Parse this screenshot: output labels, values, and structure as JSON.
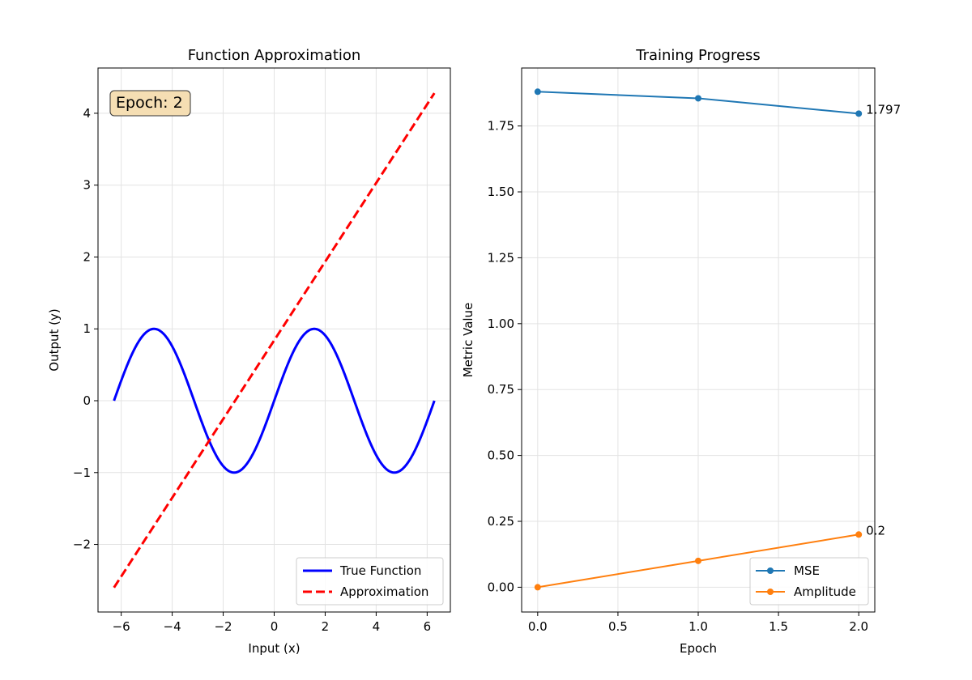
{
  "chart_data": [
    {
      "type": "line",
      "title": "Function Approximation",
      "xlabel": "Input (x)",
      "ylabel": "Output (y)",
      "xlim": [
        -6.91,
        6.91
      ],
      "ylim": [
        -2.94,
        4.63
      ],
      "xticks": [
        -6,
        -4,
        -2,
        0,
        2,
        4,
        6
      ],
      "xtick_labels": [
        "−6",
        "−4",
        "−2",
        "0",
        "2",
        "4",
        "6"
      ],
      "yticks": [
        -2,
        -1,
        0,
        1,
        2,
        3,
        4
      ],
      "ytick_labels": [
        "−2",
        "−1",
        "0",
        "1",
        "2",
        "3",
        "4"
      ],
      "grid": true,
      "legend_position": "lower-right",
      "annotation": "Epoch: 2",
      "series": [
        {
          "name": "True Function",
          "color": "#0000ff",
          "style": "solid",
          "function": "sin(x)",
          "x_range": [
            -6.283,
            6.283
          ]
        },
        {
          "name": "Approximation",
          "color": "#ff0000",
          "style": "dashed",
          "x": [
            -6.283,
            6.283
          ],
          "y": [
            -2.6,
            4.28
          ]
        }
      ]
    },
    {
      "type": "line",
      "title": "Training Progress",
      "xlabel": "Epoch",
      "ylabel": "Metric Value",
      "xlim": [
        -0.1,
        2.1
      ],
      "ylim": [
        -0.094,
        1.97
      ],
      "xticks": [
        0,
        0.5,
        1,
        1.5,
        2
      ],
      "xtick_labels": [
        "0.0",
        "0.5",
        "1.0",
        "1.5",
        "2.0"
      ],
      "yticks": [
        0,
        0.25,
        0.5,
        0.75,
        1,
        1.25,
        1.5,
        1.75
      ],
      "ytick_labels": [
        "0.00",
        "0.25",
        "0.50",
        "0.75",
        "1.00",
        "1.25",
        "1.50",
        "1.75"
      ],
      "grid": true,
      "legend_position": "lower-right",
      "x": [
        0,
        1,
        2
      ],
      "series": [
        {
          "name": "MSE",
          "color": "#1f77b4",
          "values": [
            1.88,
            1.855,
            1.797
          ],
          "end_label": "1.797"
        },
        {
          "name": "Amplitude",
          "color": "#ff7f0e",
          "values": [
            0,
            0.1,
            0.2
          ],
          "end_label": "0.2"
        }
      ]
    }
  ]
}
